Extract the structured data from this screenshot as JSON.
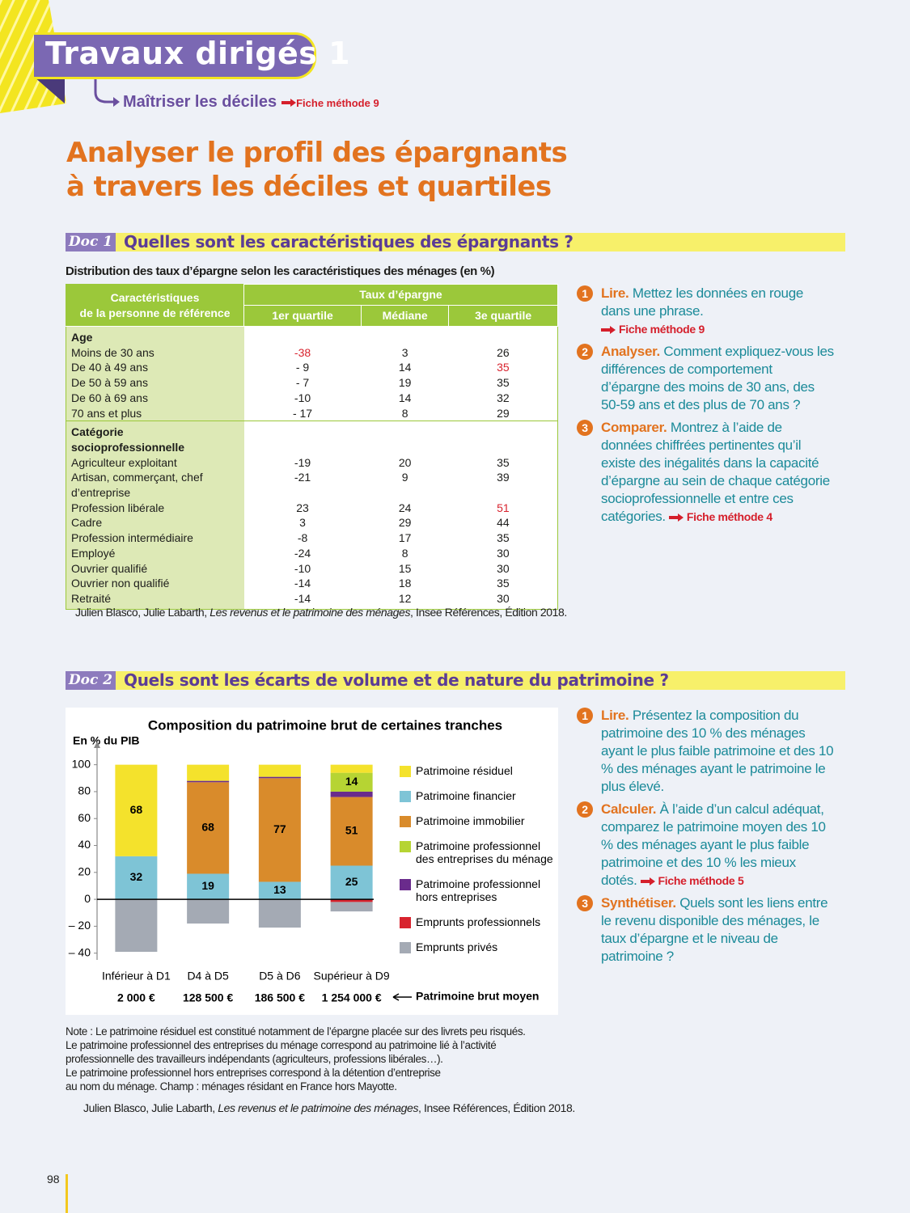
{
  "header": {
    "title": "Travaux dirigés 1",
    "subtitle": "Maîtriser les déciles",
    "subtitle_ref": "Fiche méthode 9",
    "heading": [
      "Analyser le profil des épargnants",
      "à travers les déciles et quartiles"
    ]
  },
  "doc1": {
    "label": "Doc 1",
    "title": "Quelles sont les caractéristiques des épargnants ?",
    "caption": "Distribution des taux d’épargne selon les caractéristiques des ménages (en %)",
    "table": {
      "col_header": [
        "Caractéristiques",
        "de la personne de référence"
      ],
      "group_header": "Taux d’épargne",
      "columns": [
        "1er quartile",
        "Médiane",
        "3e quartile"
      ],
      "highlight_color": "#d8232e",
      "groups": [
        {
          "title": "Age",
          "rows": [
            {
              "label": "Moins de 30 ans",
              "cells": [
                "-38",
                "3",
                "26"
              ],
              "highlight": [
                0
              ]
            },
            {
              "label": "De 40 à 49 ans",
              "cells": [
                "- 9",
                "14",
                "35"
              ],
              "highlight": [
                2
              ]
            },
            {
              "label": "De 50 à 59 ans",
              "cells": [
                "- 7",
                "19",
                "35"
              ]
            },
            {
              "label": "De 60 à 69 ans",
              "cells": [
                "-10",
                "14",
                "32"
              ]
            },
            {
              "label": "70 ans et plus",
              "cells": [
                "- 17",
                "8",
                "29"
              ]
            }
          ]
        },
        {
          "title": "Catégorie socioprofessionnelle",
          "rows": [
            {
              "label": "Agriculteur exploitant",
              "cells": [
                "-19",
                "20",
                "35"
              ]
            },
            {
              "label": "Artisan, commerçant, chef d’entreprise",
              "cells": [
                "-21",
                "9",
                "39"
              ]
            },
            {
              "label": "Profession libérale",
              "cells": [
                "23",
                "24",
                "51"
              ],
              "highlight": [
                2
              ]
            },
            {
              "label": "Cadre",
              "cells": [
                "3",
                "29",
                "44"
              ]
            },
            {
              "label": "Profession intermédiaire",
              "cells": [
                "-8",
                "17",
                "35"
              ]
            },
            {
              "label": "Employé",
              "cells": [
                "-24",
                "8",
                "30"
              ]
            },
            {
              "label": "Ouvrier qualifié",
              "cells": [
                "-10",
                "15",
                "30"
              ]
            },
            {
              "label": "Ouvrier non qualifié",
              "cells": [
                "-14",
                "18",
                "35"
              ]
            },
            {
              "label": "Retraité",
              "cells": [
                "-14",
                "12",
                "30"
              ]
            }
          ]
        }
      ]
    },
    "source": [
      "Julien Blasco, Julie Labarth, ",
      "Les revenus et le patrimoine des ménages",
      ", Insee Références, Édition 2018."
    ],
    "questions": [
      {
        "number": "1",
        "verb": "Lire.",
        "text": "Mettez les données en rouge dans une phrase.",
        "ref": "Fiche méthode 9"
      },
      {
        "number": "2",
        "verb": "Analyser.",
        "text": "Comment expliquez-vous les différences de comportement d’épargne des moins de 30 ans, des 50-59 ans et des plus de 70 ans ?"
      },
      {
        "number": "3",
        "verb": "Comparer.",
        "text": "Montrez à l’aide de données chiffrées pertinentes qu’il existe des inégalités dans la capacité d’épargne au sein de chaque catégorie socioprofessionnelle et entre ces catégories.",
        "ref": "Fiche méthode 4"
      }
    ]
  },
  "doc2": {
    "label": "Doc 2",
    "title": "Quels sont les écarts de volume et de nature du patrimoine ?",
    "note": [
      "Note : Le patrimoine résiduel est constitué notamment de l’épargne placée sur des livrets peu risqués.",
      "Le patrimoine professionnel des entreprises du ménage correspond au patrimoine lié à l’activité",
      "professionnelle des travailleurs indépendants (agriculteurs, professions libérales…).",
      "Le patrimoine professionnel hors entreprises correspond à la détention d’entreprise",
      "au nom du ménage. Champ : ménages résidant en France hors Mayotte."
    ],
    "source": [
      "Julien Blasco, Julie Labarth, ",
      "Les revenus et le patrimoine des ménages",
      ", Insee Références, Édition 2018."
    ],
    "questions": [
      {
        "number": "1",
        "verb": "Lire.",
        "text": "Présentez la composition du patrimoine des 10 % des ménages ayant le plus faible patrimoine et des 10 % des ménages ayant le patrimoine le plus élevé."
      },
      {
        "number": "2",
        "verb": "Calculer.",
        "text": "À l’aide d’un calcul adéquat, comparez le patrimoine moyen des 10 % des ménages ayant le plus faible patrimoine et des 10 % les mieux dotés.",
        "ref": "Fiche méthode 5"
      },
      {
        "number": "3",
        "verb": "Synthétiser.",
        "text": "Quels sont les liens entre le revenu disponible des ménages, le taux d’épargne et le niveau de patrimoine ?"
      }
    ]
  },
  "chart_data": {
    "type": "bar",
    "stacked": true,
    "title": "Composition du patrimoine brut de certaines tranches",
    "ylabel": "En % du PIB",
    "categories": [
      "Inférieur à D1",
      "D4 à D5",
      "D5 à D6",
      "Supérieur à D9"
    ],
    "ylim": [
      -45,
      110
    ],
    "yticks": [
      100,
      80,
      60,
      40,
      20,
      0,
      {
        "value": -20,
        "label": "– 20"
      },
      {
        "value": -40,
        "label": "– 40"
      }
    ],
    "stack_order": [
      1,
      2,
      4,
      3,
      0,
      5,
      6
    ],
    "series": [
      {
        "name": "Patrimoine résiduel",
        "color": "#f4e22c",
        "values": [
          68,
          12,
          9,
          6
        ]
      },
      {
        "name": "Patrimoine financier",
        "color": "#7ec4d6",
        "values": [
          32,
          19,
          13,
          25
        ]
      },
      {
        "name": "Patrimoine immobilier",
        "color": "#d98b2b",
        "values": [
          0,
          68,
          77,
          51
        ]
      },
      {
        "name": "Patrimoine professionnel des entreprises du ménage",
        "color": "#b6d433",
        "values": [
          0,
          0,
          0,
          14
        ]
      },
      {
        "name": "Patrimoine professionnel hors entreprises",
        "color": "#6a2b8c",
        "values": [
          0,
          1,
          1,
          4
        ]
      },
      {
        "name": "Emprunts professionnels",
        "color": "#d8232e",
        "values": [
          0,
          0,
          0,
          -2
        ]
      },
      {
        "name": "Emprunts privés",
        "color": "#a4aab4",
        "values": [
          -39,
          -18,
          -21,
          -7
        ]
      }
    ],
    "mean_label": "Patrimoine brut moyen",
    "mean_values": [
      "2 000 €",
      "128 500 €",
      "186 500 €",
      "1 254 000 €"
    ]
  },
  "page_number": "98"
}
